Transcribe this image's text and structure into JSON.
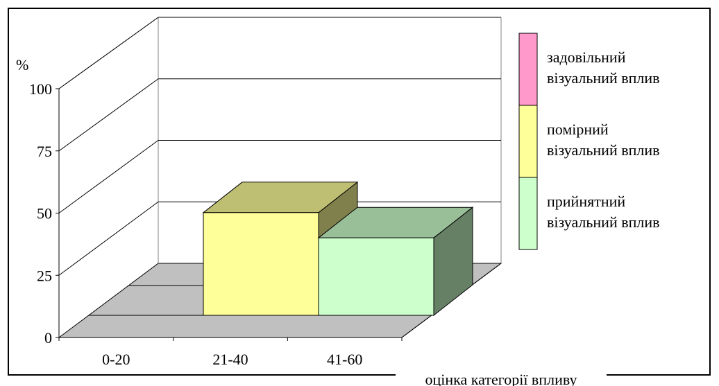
{
  "chart_data": {
    "type": "bar",
    "style": "3d-column",
    "categories": [
      "0-20",
      "21-40",
      "41-60"
    ],
    "series": [
      {
        "name": "задовільний\nвізуальний вплив",
        "values": [
          0,
          0,
          0
        ]
      },
      {
        "name": "помірний\nвізуальний вплив",
        "values": [
          0,
          57,
          0
        ]
      },
      {
        "name": "прийнятний\nвізуальний вплив",
        "values": [
          0,
          0,
          43
        ]
      }
    ],
    "ylabel": "%",
    "xlabel": "оцінка категорії впливу",
    "yticks": [
      "0",
      "25",
      "50",
      "75",
      "100"
    ],
    "ylim": [
      0,
      100
    ],
    "grid": true,
    "legend_position": "right",
    "colors": {
      "задовільний": "#ff99cc",
      "помірний": "#ffff99",
      "прийнятний": "#ccffcc",
      "floor": "#c0c0c0",
      "border": "#000000"
    }
  }
}
